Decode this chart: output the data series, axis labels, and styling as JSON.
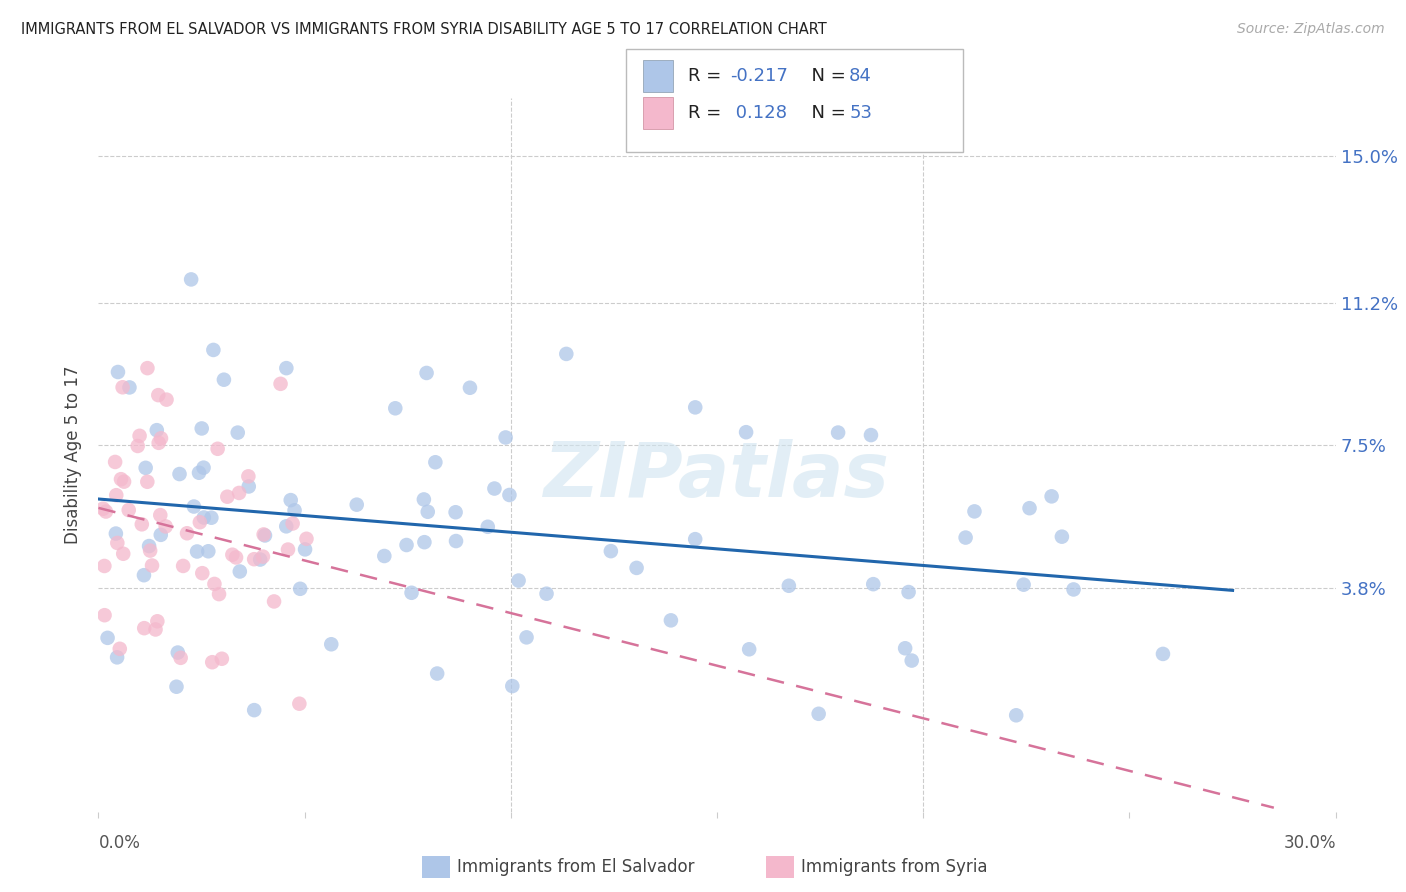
{
  "title": "IMMIGRANTS FROM EL SALVADOR VS IMMIGRANTS FROM SYRIA DISABILITY AGE 5 TO 17 CORRELATION CHART",
  "source": "Source: ZipAtlas.com",
  "ylabel": "Disability Age 5 to 17",
  "ytick_labels": [
    "15.0%",
    "11.2%",
    "7.5%",
    "3.8%"
  ],
  "ytick_values": [
    0.15,
    0.112,
    0.075,
    0.038
  ],
  "xmin": 0.0,
  "xmax": 0.3,
  "ymin": -0.02,
  "ymax": 0.165,
  "el_salvador_color": "#aec6e8",
  "el_salvador_line_color": "#2166ac",
  "syria_color": "#f4b8cc",
  "syria_line_color": "#d6739a",
  "watermark_color": "#d0e4f0",
  "title_color": "#222222",
  "source_color": "#aaaaaa",
  "right_tick_color": "#4472c4",
  "grid_color": "#cccccc",
  "legend_R_color": "#d45f00",
  "legend_N_color": "#2166ac"
}
